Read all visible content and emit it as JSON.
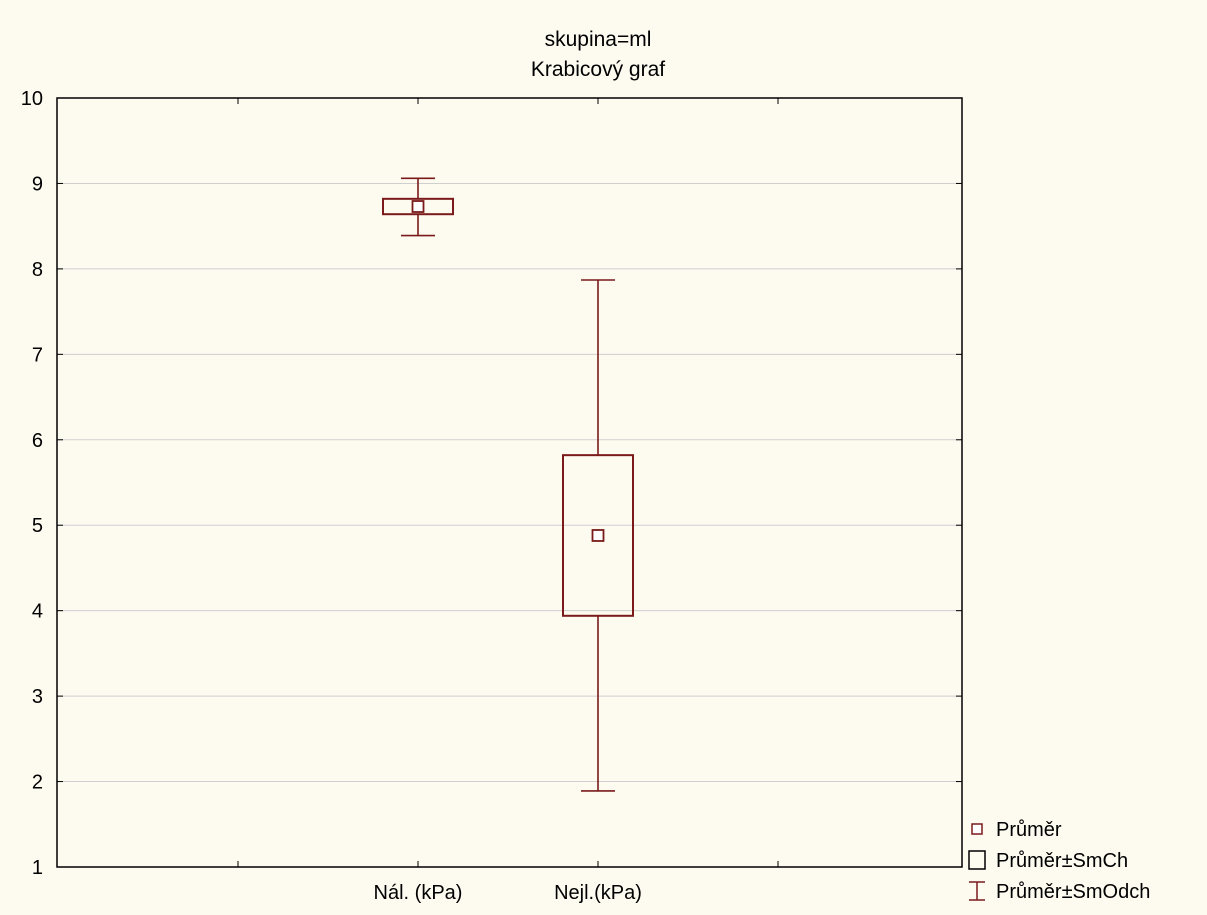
{
  "chart_data": {
    "type": "box",
    "title": "skupina=ml",
    "subtitle": "Krabicový graf",
    "xlabel": "",
    "ylabel": "",
    "ylim": [
      1,
      10
    ],
    "yticks": [
      1,
      2,
      3,
      4,
      5,
      6,
      7,
      8,
      9,
      10
    ],
    "grid": true,
    "legend_position": "bottom-right",
    "color": "#7a1a1a",
    "categories": [
      "Nál. (kPa)",
      "Nejl.(kPa)"
    ],
    "series": [
      {
        "category": "Nál. (kPa)",
        "mean": 8.73,
        "box_low": 8.64,
        "box_high": 8.82,
        "whisker_low": 8.39,
        "whisker_high": 9.06
      },
      {
        "category": "Nejl.(kPa)",
        "mean": 4.88,
        "box_low": 3.94,
        "box_high": 5.82,
        "whisker_low": 1.89,
        "whisker_high": 7.87
      }
    ],
    "legend": [
      {
        "label": "Průměr",
        "symbol": "small-square"
      },
      {
        "label": "Průměr±SmCh",
        "symbol": "box"
      },
      {
        "label": "Průměr±SmOdch",
        "symbol": "whisker"
      }
    ]
  }
}
